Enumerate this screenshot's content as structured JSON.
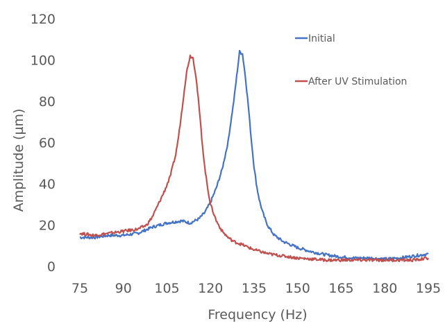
{
  "chart_data": {
    "type": "line",
    "xlabel": "Frequency (Hz)",
    "ylabel": "Amplitude  (µm)",
    "xlim": [
      75,
      195
    ],
    "ylim": [
      0,
      120
    ],
    "xticks": [
      "75",
      "90",
      "105",
      "120",
      "135",
      "150",
      "165",
      "180",
      "195"
    ],
    "yticks": [
      "0",
      "20",
      "40",
      "60",
      "80",
      "100",
      "120"
    ],
    "grid": false,
    "legend_position": "inside, top-right",
    "series": [
      {
        "name": "Initial",
        "color": "#4472C4",
        "x": [
          75,
          80,
          85,
          90,
          95,
          100,
          105,
          110,
          113,
          116,
          118,
          120,
          122,
          124,
          126,
          127,
          128,
          129,
          130,
          131,
          132,
          133,
          134,
          135,
          136,
          137,
          138,
          139,
          140,
          142,
          145,
          150,
          155,
          160,
          165,
          170,
          175,
          180,
          185,
          190,
          195
        ],
        "y": [
          14,
          14,
          15,
          15,
          16,
          19,
          21,
          22,
          21,
          23,
          26,
          31,
          38,
          47,
          60,
          70,
          80,
          92,
          104,
          103,
          92,
          78,
          62,
          48,
          38,
          31,
          26,
          22,
          19,
          15,
          12,
          9,
          7,
          5.5,
          4.5,
          4,
          4,
          3.5,
          4,
          5,
          6
        ]
      },
      {
        "name": "After UV Stimulation",
        "color": "#C0504D",
        "x": [
          75,
          80,
          85,
          90,
          95,
          98,
          100,
          102,
          104,
          106,
          108,
          109,
          110,
          111,
          112,
          113,
          114,
          115,
          116,
          117,
          118,
          119,
          120,
          122,
          124,
          126,
          128,
          130,
          135,
          140,
          145,
          150,
          155,
          160,
          170,
          180,
          190,
          195
        ],
        "y": [
          16,
          15,
          16,
          17,
          18,
          20,
          24,
          30,
          36,
          43,
          54,
          63,
          74,
          86,
          96,
          102,
          101,
          92,
          78,
          62,
          48,
          38,
          30,
          22,
          17,
          14,
          12,
          11,
          8,
          6,
          5,
          4,
          3.5,
          3,
          3,
          3,
          3,
          4
        ]
      }
    ]
  }
}
